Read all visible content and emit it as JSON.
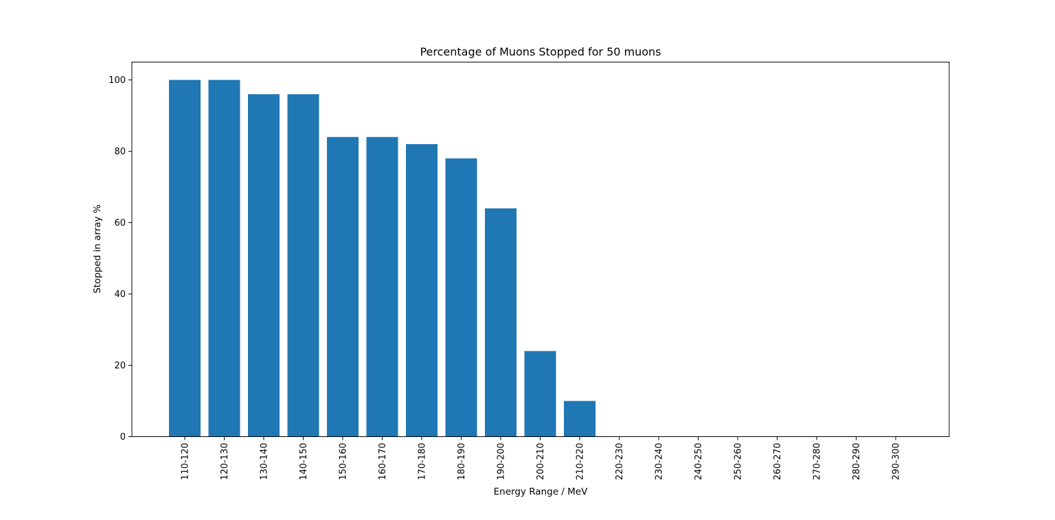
{
  "chart_data": {
    "type": "bar",
    "title": "Percentage of Muons Stopped for 50 muons",
    "xlabel": "Energy Range / MeV",
    "ylabel": "Stopped in array %",
    "categories": [
      "110-120",
      "120-130",
      "130-140",
      "140-150",
      "150-160",
      "160-170",
      "170-180",
      "180-190",
      "190-200",
      "200-210",
      "210-220",
      "220-230",
      "230-240",
      "240-250",
      "250-260",
      "260-270",
      "270-280",
      "280-290",
      "290-300"
    ],
    "values": [
      100,
      100,
      96,
      96,
      84,
      84,
      82,
      78,
      64,
      24,
      10,
      0,
      0,
      0,
      0,
      0,
      0,
      0,
      0
    ],
    "ylim": [
      0,
      105
    ],
    "yticks": [
      0,
      20,
      40,
      60,
      80,
      100
    ],
    "grid": false,
    "legend": "none",
    "bar_color": "#1f77b4"
  }
}
